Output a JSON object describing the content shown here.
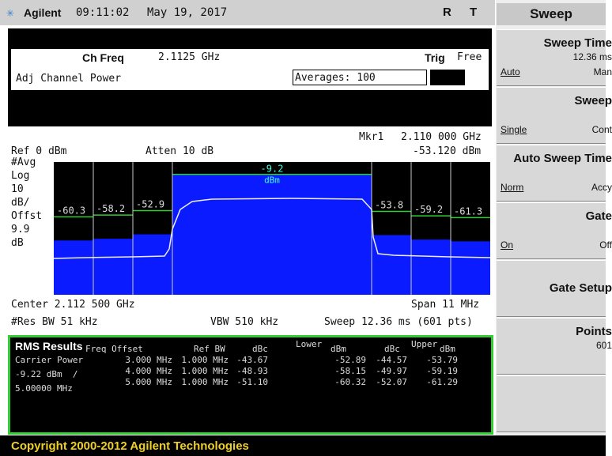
{
  "header": {
    "brand": "Agilent",
    "time": "09:11:02",
    "date": "May 19, 2017",
    "flags": [
      "R",
      "T"
    ]
  },
  "status": {
    "ch_freq_label": "Ch Freq",
    "ch_freq": "2.1125 GHz",
    "trig_label": "Trig",
    "trig": "Free",
    "mode": "Adj Channel Power",
    "averages": "Averages: 100"
  },
  "marker": {
    "name": "Mkr1",
    "freq": "2.110 000 GHz",
    "level": "-53.120 dBm"
  },
  "display": {
    "ref": "Ref 0 dBm",
    "atten": "Atten 10 dB",
    "scale_labels": [
      "#Avg",
      "Log",
      "10",
      "dB/",
      "Offst",
      "9.9",
      "dB"
    ],
    "channel_levels": [
      -60.3,
      -58.2,
      -52.9,
      -9.2,
      -53.8,
      -59.2,
      -61.3
    ],
    "main_unit": "dBm",
    "center": "Center 2.112 500 GHz",
    "span": "Span 11 MHz",
    "res_bw": "#Res BW 51 kHz",
    "vbw": "VBW 510 kHz",
    "sweep": "Sweep 12.36 ms (601 pts)"
  },
  "results": {
    "title": "RMS Results",
    "headings": [
      "Freq Offset",
      "Ref BW",
      "dBc",
      "dBm",
      "dBc",
      "dBm"
    ],
    "lower": "Lower",
    "upper": "Upper",
    "carrier": [
      "Carrier Power",
      "-9.22 dBm  /",
      "5.00000 MHz"
    ],
    "rows": [
      [
        "3.000 MHz",
        "1.000 MHz",
        "-43.67",
        "-52.89",
        "-44.57",
        "-53.79"
      ],
      [
        "4.000 MHz",
        "1.000 MHz",
        "-48.93",
        "-58.15",
        "-49.97",
        "-59.19"
      ],
      [
        "5.000 MHz",
        "1.000 MHz",
        "-51.10",
        "-60.32",
        "-52.07",
        "-61.29"
      ]
    ]
  },
  "copyright": "Copyright 2000-2012 Agilent Technologies",
  "menu": {
    "title": "Sweep",
    "keys": [
      {
        "label": "Sweep Time",
        "value": "12.36 ms",
        "left": "Auto",
        "right": "Man"
      },
      {
        "label": "Sweep",
        "left": "Single",
        "right": "Cont"
      },
      {
        "label": "Auto Sweep Time",
        "left": "Norm",
        "right": "Accy"
      },
      {
        "label": "Gate",
        "left": "On",
        "right": "Off"
      },
      {
        "label": "Gate Setup"
      },
      {
        "label": "Points",
        "value": "601"
      }
    ]
  }
}
